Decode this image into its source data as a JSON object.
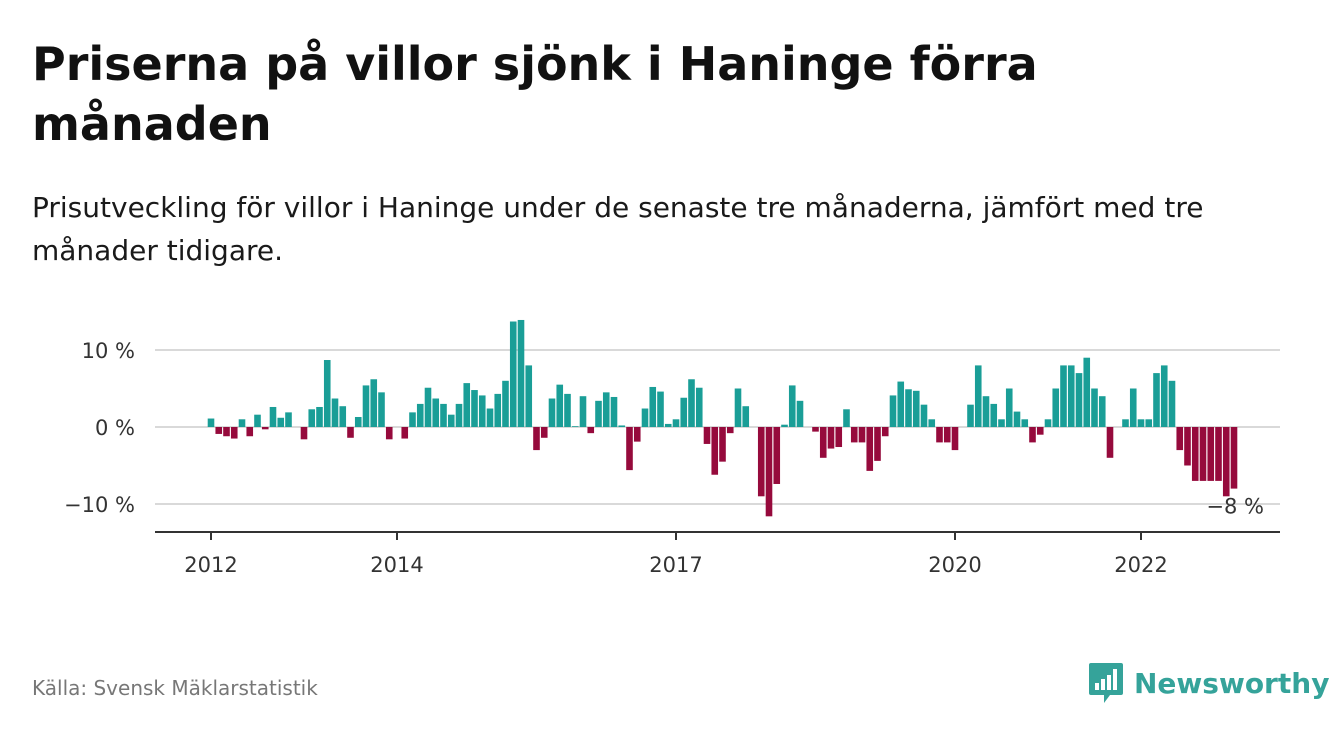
{
  "title": "Priserna på villor sjönk i Haninge förra månaden",
  "subtitle": "Prisutveckling för villor i Haninge under de senaste tre månaderna, jämfört med tre månader tidigare.",
  "source": "Källa: Svensk Mäklarstatistik",
  "brand": "Newsworthy",
  "colors": {
    "positive": "#1a9e97",
    "negative": "#960a3c",
    "brand": "#35a39a",
    "grid": "#d9d9d9",
    "axis": "#333333"
  },
  "chart_data": {
    "type": "bar",
    "ylim": [
      -13,
      11
    ],
    "y_ticks": [
      {
        "value": 10,
        "label": "10 %"
      },
      {
        "value": 0,
        "label": "0 %"
      },
      {
        "value": -10,
        "label": "−10 %"
      }
    ],
    "x_ticks": [
      {
        "index": 0,
        "label": "2012"
      },
      {
        "index": 24,
        "label": "2014"
      },
      {
        "index": 60,
        "label": "2017"
      },
      {
        "index": 96,
        "label": "2020"
      },
      {
        "index": 120,
        "label": "2022"
      }
    ],
    "grid": true,
    "last_value_label": "−8 %",
    "values": [
      1.1,
      -0.9,
      -1.2,
      -1.5,
      1.0,
      -1.2,
      1.6,
      -0.3,
      2.6,
      1.2,
      1.9,
      0,
      -1.6,
      2.3,
      2.6,
      8.7,
      3.7,
      2.7,
      -1.4,
      1.3,
      5.4,
      6.2,
      4.5,
      -1.6,
      0,
      -1.5,
      1.9,
      3.0,
      5.1,
      3.7,
      3.0,
      1.6,
      3.0,
      5.7,
      4.8,
      4.1,
      2.4,
      4.3,
      6.0,
      13.7,
      13.9,
      8.0,
      -3.0,
      -1.4,
      3.7,
      5.5,
      4.3,
      0.1,
      4.0,
      -0.8,
      3.4,
      4.5,
      3.9,
      0.2,
      -5.6,
      -1.9,
      2.4,
      5.2,
      4.6,
      0.4,
      1.0,
      3.8,
      6.2,
      5.1,
      -2.2,
      -6.2,
      -4.5,
      -0.8,
      5.0,
      2.7,
      0,
      -9.0,
      -11.6,
      -7.4,
      0.3,
      5.4,
      3.4,
      0,
      -0.6,
      -4.0,
      -2.8,
      -2.6,
      2.3,
      -2.0,
      -2.0,
      -5.7,
      -4.4,
      -1.2,
      4.1,
      5.9,
      4.9,
      4.7,
      2.9,
      1.0,
      -2.0,
      -2.0,
      -3.0,
      0,
      2.9,
      8.0,
      4.0,
      3.0,
      1.0,
      5.0,
      2.0,
      1.0,
      -2.0,
      -1.0,
      1.0,
      5.0,
      8.0,
      8.0,
      7.0,
      9.0,
      5.0,
      4.0,
      -4.0,
      0,
      1.0,
      5.0,
      1.0,
      1.0,
      7.0,
      8.0,
      6.0,
      -3.0,
      -5.0,
      -7.0,
      -7.0,
      -7.0,
      -7.0,
      -9.0,
      -8.0
    ]
  }
}
